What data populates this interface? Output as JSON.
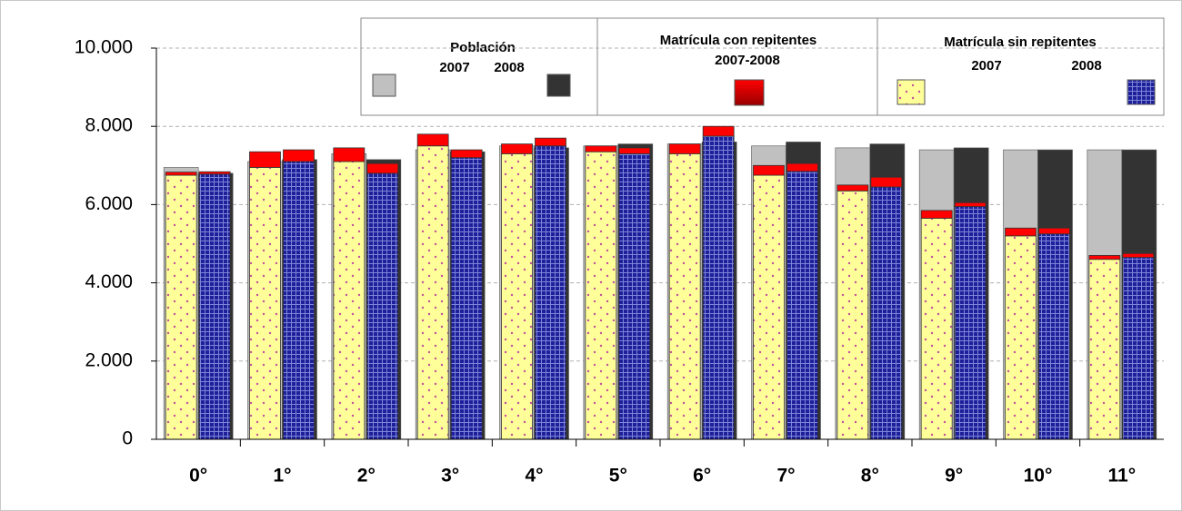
{
  "chart_data": {
    "type": "bar",
    "categories": [
      "0°",
      "1°",
      "2°",
      "3°",
      "4°",
      "5°",
      "6°",
      "7°",
      "8°",
      "9°",
      "10°",
      "11°"
    ],
    "ylim": [
      0,
      10000
    ],
    "yticks": [
      0,
      {
        "value": 2000,
        "label": "2.000"
      },
      {
        "value": 4000,
        "label": "4.000"
      },
      {
        "value": 6000,
        "label": "6.000"
      },
      {
        "value": 8000,
        "label": "8.000"
      },
      {
        "value": 10000,
        "label": "10.000"
      }
    ],
    "grid": true,
    "series_groups": [
      {
        "name": "Población",
        "series": [
          {
            "name": "2007",
            "color": "#c0c0c0",
            "values": [
              6950,
              7100,
              7300,
              7400,
              7500,
              7500,
              7550,
              7500,
              7450,
              7400,
              7400,
              7400
            ]
          },
          {
            "name": "2008",
            "color": "#333333",
            "values": [
              6800,
              7150,
              7150,
              7350,
              7450,
              7550,
              7600,
              7600,
              7550,
              7450,
              7400,
              7400
            ]
          }
        ]
      },
      {
        "name": "Matrícula con repitentes",
        "label": "2007-2008",
        "series": [
          {
            "color": "#ff0000",
            "values": [
              80,
              400,
              350,
              300,
              250,
              150,
              250,
              250,
              150,
              200,
              200,
              100
            ]
          },
          {
            "color": "#ff0000",
            "values": [
              60,
              300,
              250,
              200,
              200,
              150,
              250,
              200,
              250,
              100,
              150,
              100
            ]
          }
        ]
      },
      {
        "name": "Matrícula sin repitentes",
        "series": [
          {
            "name": "2007",
            "color": "#ffff99",
            "values": [
              6750,
              6950,
              7100,
              7500,
              7300,
              7350,
              7300,
              6750,
              6350,
              5650,
              5200,
              4600
            ]
          },
          {
            "name": "2008",
            "color": "#1f1f9a",
            "values": [
              6780,
              7100,
              6800,
              7200,
              7500,
              7300,
              7750,
              6850,
              6450,
              5950,
              5250,
              4650
            ]
          }
        ]
      }
    ]
  }
}
